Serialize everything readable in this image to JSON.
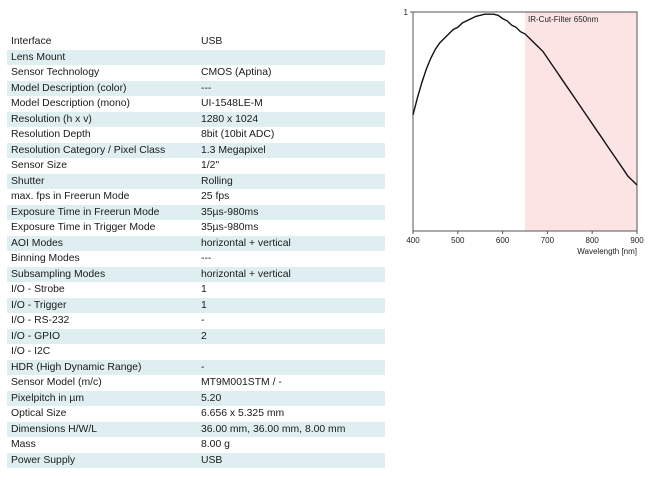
{
  "specs": [
    {
      "label": "Interface",
      "value": "USB"
    },
    {
      "label": "Lens Mount",
      "value": ""
    },
    {
      "label": "Sensor Technology",
      "value": "CMOS (Aptina)"
    },
    {
      "label": "Model Description (color)",
      "value": "---"
    },
    {
      "label": "Model Description (mono)",
      "value": "UI-1548LE-M"
    },
    {
      "label": "Resolution (h x v)",
      "value": "1280 x 1024"
    },
    {
      "label": "Resolution Depth",
      "value": "8bit (10bit ADC)"
    },
    {
      "label": "Resolution Category / Pixel Class",
      "value": "1.3 Megapixel"
    },
    {
      "label": "Sensor Size",
      "value": "1/2\""
    },
    {
      "label": "Shutter",
      "value": "Rolling"
    },
    {
      "label": "max. fps in Freerun Mode",
      "value": "25 fps"
    },
    {
      "label": "Exposure Time in Freerun Mode",
      "value": "35µs-980ms"
    },
    {
      "label": "Exposure Time in Trigger Mode",
      "value": "35µs-980ms"
    },
    {
      "label": "AOI Modes",
      "value": "horizontal + vertical"
    },
    {
      "label": "Binning Modes",
      "value": "---"
    },
    {
      "label": "Subsampling Modes",
      "value": "horizontal + vertical"
    },
    {
      "label": "I/O - Strobe",
      "value": "1"
    },
    {
      "label": "I/O - Trigger",
      "value": "1"
    },
    {
      "label": "I/O - RS-232",
      "value": "-"
    },
    {
      "label": "I/O - GPIO",
      "value": "2"
    },
    {
      "label": "I/O - I2C",
      "value": ""
    },
    {
      "label": "HDR (High Dynamic Range)",
      "value": "-"
    },
    {
      "label": "Sensor Model (m/c)",
      "value": "MT9M001STM / -"
    },
    {
      "label": "Pixelpitch in µm",
      "value": "5.20"
    },
    {
      "label": "Optical Size",
      "value": "6.656 x 5.325 mm"
    },
    {
      "label": "Dimensions H/W/L",
      "value": "36.00 mm, 36.00 mm, 8.00 mm"
    },
    {
      "label": "Mass",
      "value": "8.00 g"
    },
    {
      "label": "Power Supply",
      "value": "USB"
    }
  ],
  "chart_data": {
    "type": "line",
    "xlabel": "Wavelength [nm]",
    "ylabel": "",
    "xlim": [
      400,
      900
    ],
    "ylim": [
      0,
      1
    ],
    "x_ticks": [
      400,
      500,
      600,
      700,
      800,
      900
    ],
    "y_ticks_labels": [
      "1"
    ],
    "shaded_region": {
      "from": 650,
      "to": 900,
      "label": "IR-Cut-Filter 650nm",
      "color": "#fde4e4"
    },
    "series": [
      {
        "x": [
          400,
          410,
          420,
          430,
          440,
          450,
          460,
          470,
          480,
          490,
          500,
          510,
          520,
          530,
          540,
          550,
          560,
          570,
          580,
          590,
          600,
          610,
          620,
          630,
          640,
          650,
          660,
          670,
          680,
          690,
          700,
          710,
          720,
          730,
          740,
          750,
          760,
          770,
          780,
          790,
          800,
          810,
          820,
          830,
          840,
          850,
          860,
          870,
          880,
          890,
          900
        ],
        "values": [
          0.53,
          0.61,
          0.68,
          0.74,
          0.79,
          0.83,
          0.86,
          0.88,
          0.9,
          0.92,
          0.93,
          0.95,
          0.96,
          0.97,
          0.98,
          0.985,
          0.99,
          0.99,
          0.99,
          0.985,
          0.97,
          0.96,
          0.94,
          0.93,
          0.91,
          0.9,
          0.88,
          0.86,
          0.84,
          0.82,
          0.79,
          0.76,
          0.73,
          0.7,
          0.67,
          0.64,
          0.61,
          0.58,
          0.55,
          0.52,
          0.49,
          0.46,
          0.43,
          0.4,
          0.37,
          0.34,
          0.31,
          0.28,
          0.25,
          0.23,
          0.21
        ]
      }
    ],
    "colors": {
      "line": "#111111",
      "axis": "#555555"
    }
  }
}
